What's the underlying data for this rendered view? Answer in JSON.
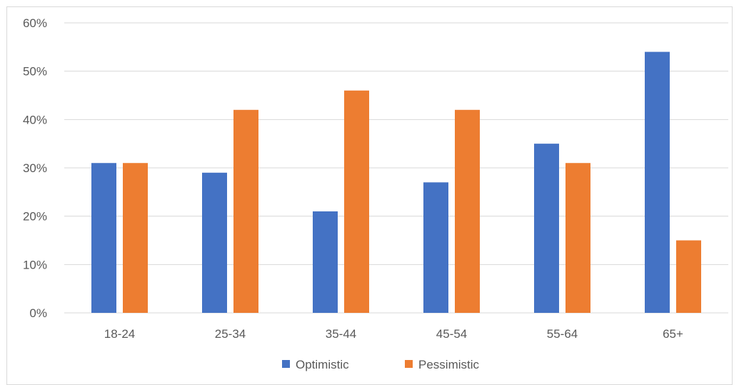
{
  "chart_data": {
    "type": "bar",
    "categories": [
      "18-24",
      "25-34",
      "35-44",
      "45-54",
      "55-64",
      "65+"
    ],
    "series": [
      {
        "name": "Optimistic",
        "values": [
          31,
          29,
          21,
          27,
          35,
          54
        ],
        "color": "#4472c4"
      },
      {
        "name": "Pessimistic",
        "values": [
          31,
          42,
          46,
          42,
          31,
          15
        ],
        "color": "#ed7d31"
      }
    ],
    "y_ticks": [
      "0%",
      "10%",
      "20%",
      "30%",
      "40%",
      "50%",
      "60%"
    ],
    "ylim": [
      0,
      60
    ],
    "y_unit": "%",
    "title": "",
    "xlabel": "",
    "ylabel": "",
    "grid": true,
    "legend_position": "bottom",
    "gridline_color": "#d9d9d9"
  }
}
